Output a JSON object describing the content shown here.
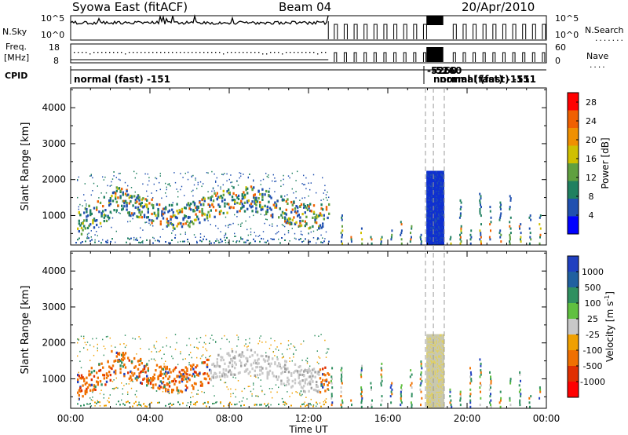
{
  "header": {
    "title": "Syowa East (fitACF)",
    "beam": "Beam 04",
    "date": "20/Apr/2010"
  },
  "left_labels": {
    "nsky": "N.Sky",
    "freq_line1": "Freq.",
    "freq_line2": "[MHz]",
    "cpid": "CPID"
  },
  "right_labels": {
    "nsearch": "N.Search",
    "nave": "Nave"
  },
  "scales": {
    "nsky_top": "10^5",
    "nsky_bottom": "10^0",
    "nsearch_top": "10^5",
    "nsearch_bottom": "10^0",
    "freq_top": "18",
    "freq_bottom": "8",
    "nave_top": "60",
    "nave_bottom": "0"
  },
  "cpid": {
    "main": "normal (fast) -151",
    "overlap_1": "-5260",
    "overlap_2": "normal (fast) -151"
  },
  "chart_data": [
    {
      "type": "heatmap",
      "title": "Power",
      "ylabel": "Slant Range [km]",
      "xlabel": "",
      "yticks": [
        "1000",
        "2000",
        "3000",
        "4000"
      ],
      "ylim": [
        180,
        4550
      ],
      "xlim_hours": [
        0,
        24
      ],
      "colorbar": {
        "label": "Power [dB]",
        "ticks": [
          "4",
          "8",
          "12",
          "16",
          "20",
          "24",
          "28"
        ],
        "range": [
          0,
          30
        ],
        "colors": [
          "#0000ff",
          "#2050b0",
          "#208060",
          "#60a040",
          "#d0c000",
          "#f09000",
          "#f06000",
          "#ff0000"
        ]
      }
    },
    {
      "type": "heatmap",
      "title": "Velocity",
      "ylabel": "Slant Range [km]",
      "xlabel": "Time UT",
      "yticks": [
        "1000",
        "2000",
        "3000",
        "4000"
      ],
      "ylim": [
        180,
        4550
      ],
      "xticks": [
        "00:00",
        "04:00",
        "08:00",
        "12:00",
        "16:00",
        "20:00",
        "00:00"
      ],
      "xlim_hours": [
        0,
        24
      ],
      "colorbar": {
        "label": "Velocity  [m s",
        "label_sup": "-1",
        "label_end": "]",
        "ticks": [
          "1000",
          "500",
          "100",
          "25",
          "-25",
          "-100",
          "-500",
          "-1000"
        ],
        "colors": [
          "#2040c0",
          "#2060a0",
          "#309060",
          "#60c040",
          "#c8c8c8",
          "#f0a000",
          "#f07000",
          "#e03000",
          "#ff0000"
        ]
      }
    }
  ]
}
